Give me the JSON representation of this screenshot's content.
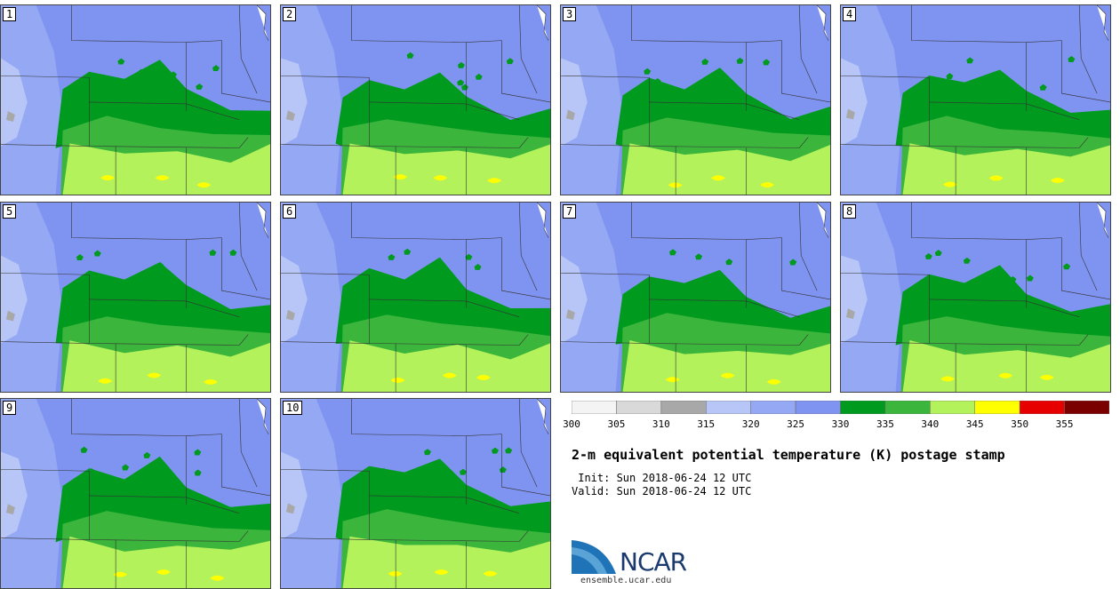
{
  "panels": [
    {
      "label": "1"
    },
    {
      "label": "2"
    },
    {
      "label": "3"
    },
    {
      "label": "4"
    },
    {
      "label": "5"
    },
    {
      "label": "6"
    },
    {
      "label": "7"
    },
    {
      "label": "8"
    },
    {
      "label": "9"
    },
    {
      "label": "10"
    }
  ],
  "colorbar": {
    "ticks": [
      "300",
      "305",
      "310",
      "315",
      "320",
      "325",
      "330",
      "335",
      "340",
      "345",
      "350",
      "355"
    ],
    "colors": [
      "#f4f4f4",
      "#d9d9d9",
      "#a8a8a8",
      "#b8c6f7",
      "#94a8f4",
      "#7f93f0",
      "#009a1f",
      "#3cb53c",
      "#b3f25a",
      "#ffff00",
      "#e60000",
      "#7a0000"
    ]
  },
  "title": "2-m equivalent potential temperature (K) postage stamp",
  "init_line": " Init: Sun 2018-06-24 12 UTC",
  "valid_line": "Valid: Sun 2018-06-24 12 UTC",
  "logo": {
    "text": "NCAR",
    "url": "ensemble.ucar.edu"
  }
}
